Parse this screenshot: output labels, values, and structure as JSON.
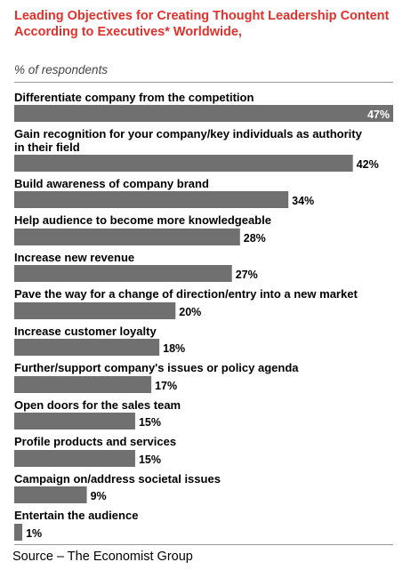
{
  "title": "Leading Objectives for Creating Thought Leadership Content According to Executives* Worldwide,",
  "subtitle": "% of respondents",
  "source": "Source – The Economist Group",
  "colors": {
    "title": "#e0312b",
    "bar": "#707070",
    "text": "#000000"
  },
  "chart_data": {
    "type": "bar",
    "orientation": "horizontal",
    "title": "Leading Objectives for Creating Thought Leadership Content According to Executives* Worldwide,",
    "subtitle": "% of respondents",
    "unit": "%",
    "xlim": [
      0,
      47
    ],
    "categories": [
      "Differentiate company from the competition",
      "Gain recognition for your company/key individuals as authority in their field",
      "Build awareness of company brand",
      "Help audience to become more knowledgeable",
      "Increase new revenue",
      "Pave the way for a change of direction/entry into a new market",
      "Increase customer loyalty",
      "Further/support company's issues or policy agenda",
      "Open doors for the sales team",
      "Profile products and services",
      "Campaign on/address societal issues",
      "Entertain the audience"
    ],
    "values": [
      47,
      42,
      34,
      28,
      27,
      20,
      18,
      17,
      15,
      15,
      9,
      1
    ],
    "labels": [
      "47%",
      "42%",
      "34%",
      "28%",
      "27%",
      "20%",
      "18%",
      "17%",
      "15%",
      "15%",
      "9%",
      "1%"
    ]
  }
}
